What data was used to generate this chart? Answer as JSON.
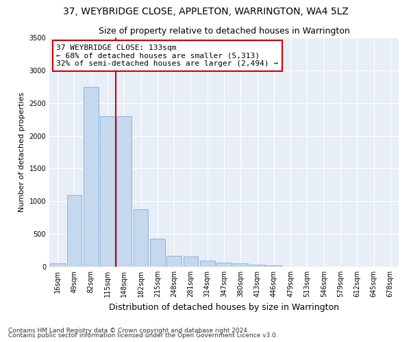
{
  "title": "37, WEYBRIDGE CLOSE, APPLETON, WARRINGTON, WA4 5LZ",
  "subtitle": "Size of property relative to detached houses in Warrington",
  "xlabel": "Distribution of detached houses by size in Warrington",
  "ylabel": "Number of detached properties",
  "categories": [
    "16sqm",
    "49sqm",
    "82sqm",
    "115sqm",
    "148sqm",
    "182sqm",
    "215sqm",
    "248sqm",
    "281sqm",
    "314sqm",
    "347sqm",
    "380sqm",
    "413sqm",
    "446sqm",
    "479sqm",
    "513sqm",
    "546sqm",
    "579sqm",
    "612sqm",
    "645sqm",
    "678sqm"
  ],
  "values": [
    50,
    1100,
    2750,
    2300,
    2300,
    875,
    430,
    170,
    160,
    95,
    60,
    55,
    35,
    20,
    0,
    0,
    0,
    0,
    0,
    0,
    0
  ],
  "bar_color": "#c5d8ee",
  "bar_edge_color": "#7bafd4",
  "vline_color": "#cc0000",
  "annotation_text": "37 WEYBRIDGE CLOSE: 133sqm\n← 68% of detached houses are smaller (5,313)\n32% of semi-detached houses are larger (2,494) →",
  "annotation_box_color": "#ffffff",
  "annotation_box_edge_color": "#cc0000",
  "ylim": [
    0,
    3500
  ],
  "yticks": [
    0,
    500,
    1000,
    1500,
    2000,
    2500,
    3000,
    3500
  ],
  "background_color": "#e8eef8",
  "grid_color": "#ffffff",
  "footer1": "Contains HM Land Registry data © Crown copyright and database right 2024.",
  "footer2": "Contains public sector information licensed under the Open Government Licence v3.0.",
  "title_fontsize": 10,
  "subtitle_fontsize": 9,
  "xlabel_fontsize": 9,
  "ylabel_fontsize": 8,
  "tick_fontsize": 7,
  "annotation_fontsize": 8,
  "footer_fontsize": 6.5
}
